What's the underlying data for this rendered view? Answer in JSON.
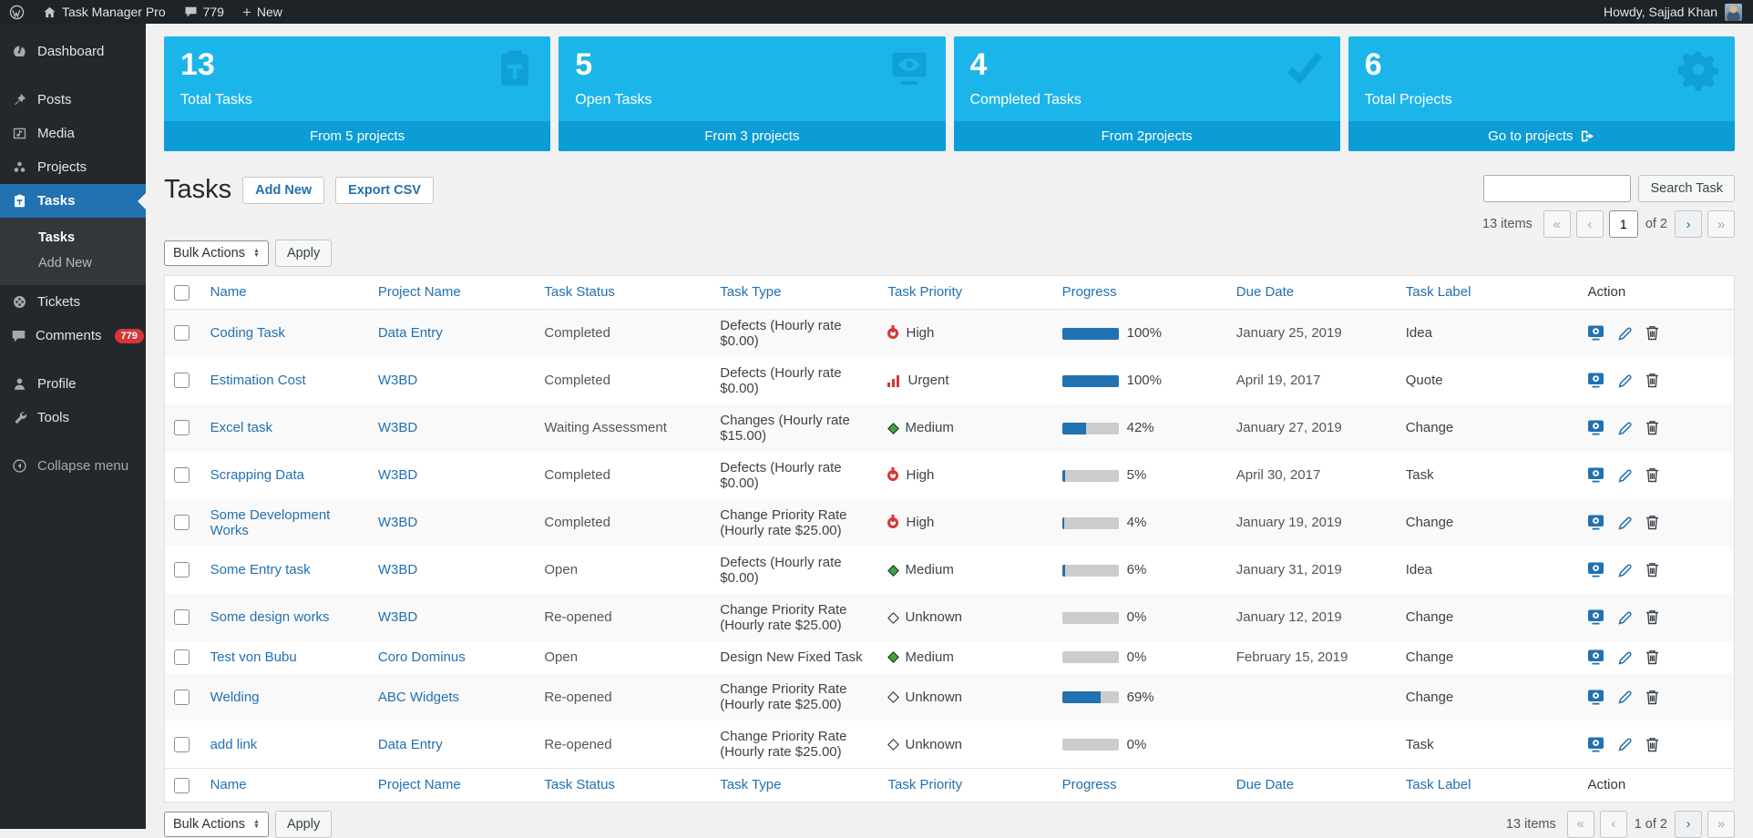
{
  "admin_bar": {
    "site_name": "Task Manager Pro",
    "comments_count": "779",
    "new_label": "New",
    "howdy": "Howdy, Sajjad Khan"
  },
  "sidebar": {
    "items": [
      {
        "label": "Dashboard"
      },
      {
        "label": "Posts"
      },
      {
        "label": "Media"
      },
      {
        "label": "Projects"
      },
      {
        "label": "Tasks"
      },
      {
        "label": "Tickets"
      },
      {
        "label": "Comments",
        "badge": "779"
      },
      {
        "label": "Profile"
      },
      {
        "label": "Tools"
      },
      {
        "label": "Collapse menu"
      }
    ],
    "submenu": [
      {
        "label": "Tasks"
      },
      {
        "label": "Add New"
      }
    ]
  },
  "cards": [
    {
      "value": "13",
      "label": "Total Tasks",
      "footer": "From 5 projects",
      "icon": "clipboard"
    },
    {
      "value": "5",
      "label": "Open Tasks",
      "footer": "From 3 projects",
      "icon": "visibility"
    },
    {
      "value": "4",
      "label": "Completed Tasks",
      "footer": "From 2projects",
      "icon": "check"
    },
    {
      "value": "6",
      "label": "Total Projects",
      "footer": "Go to projects",
      "icon": "gear"
    }
  ],
  "page": {
    "title": "Tasks",
    "add_new": "Add New",
    "export_csv": "Export CSV",
    "search_button": "Search Task"
  },
  "toolbar": {
    "bulk_actions": "Bulk Actions",
    "apply": "Apply",
    "items_count": "13 items",
    "page_value": "1",
    "of_label": "of 2",
    "first": "«",
    "prev": "‹",
    "next": "›",
    "last": "»"
  },
  "bottom_toolbar": {
    "items_count": "13 items",
    "page_text": "1 of 2"
  },
  "colors": {
    "accent_blue": "#2271b1",
    "card_blue": "#1cb5e9",
    "card_footer_blue": "#0c9cd6",
    "priority_red": "#d63638",
    "priority_green": "#43a047"
  },
  "table": {
    "columns": [
      "Name",
      "Project Name",
      "Task Status",
      "Task Type",
      "Task Priority",
      "Progress",
      "Due Date",
      "Task Label",
      "Action"
    ],
    "rows": [
      {
        "name": "Coding Task",
        "project": "Data Entry",
        "status": "Completed",
        "type": "Defects (Hourly rate $0.00)",
        "priority": "High",
        "priority_icon": "high",
        "progress": 100,
        "progress_label": "100%",
        "due": "January 25, 2019",
        "label": "Idea"
      },
      {
        "name": "Estimation Cost",
        "project": "W3BD",
        "status": "Completed",
        "type": "Defects (Hourly rate $0.00)",
        "priority": "Urgent",
        "priority_icon": "urgent",
        "progress": 100,
        "progress_label": "100%",
        "due": "April 19, 2017",
        "label": "Quote"
      },
      {
        "name": "Excel task",
        "project": "W3BD",
        "status": "Waiting Assessment",
        "type": "Changes (Hourly rate $15.00)",
        "priority": "Medium",
        "priority_icon": "medium",
        "progress": 42,
        "progress_label": "42%",
        "due": "January 27, 2019",
        "label": "Change"
      },
      {
        "name": "Scrapping Data",
        "project": "W3BD",
        "status": "Completed",
        "type": "Defects (Hourly rate $0.00)",
        "priority": "High",
        "priority_icon": "high",
        "progress": 5,
        "progress_label": "5%",
        "due": "April 30, 2017",
        "label": "Task"
      },
      {
        "name": "Some Development Works",
        "project": "W3BD",
        "status": "Completed",
        "type": "Change Priority Rate (Hourly rate $25.00)",
        "priority": "High",
        "priority_icon": "high",
        "progress": 4,
        "progress_label": "4%",
        "due": "January 19, 2019",
        "label": "Change"
      },
      {
        "name": "Some Entry task",
        "project": "W3BD",
        "status": "Open",
        "type": "Defects (Hourly rate $0.00)",
        "priority": "Medium",
        "priority_icon": "medium",
        "progress": 6,
        "progress_label": "6%",
        "due": "January 31, 2019",
        "label": "Idea"
      },
      {
        "name": "Some design works",
        "project": "W3BD",
        "status": "Re-opened",
        "type": "Change Priority Rate (Hourly rate $25.00)",
        "priority": "Unknown",
        "priority_icon": "unknown",
        "progress": 0,
        "progress_label": "0%",
        "due": "January 12, 2019",
        "label": "Change"
      },
      {
        "name": "Test von Bubu",
        "project": "Coro Dominus",
        "status": "Open",
        "type": "Design New Fixed Task",
        "priority": "Medium",
        "priority_icon": "medium",
        "progress": 0,
        "progress_label": "0%",
        "due": "February 15, 2019",
        "label": "Change"
      },
      {
        "name": "Welding",
        "project": "ABC Widgets",
        "status": "Re-opened",
        "type": "Change Priority Rate (Hourly rate $25.00)",
        "priority": "Unknown",
        "priority_icon": "unknown",
        "progress": 69,
        "progress_label": "69%",
        "due": "",
        "label": "Change"
      },
      {
        "name": "add link",
        "project": "Data Entry",
        "status": "Re-opened",
        "type": "Change Priority Rate (Hourly rate $25.00)",
        "priority": "Unknown",
        "priority_icon": "unknown",
        "progress": 0,
        "progress_label": "0%",
        "due": "",
        "label": "Task"
      }
    ]
  }
}
